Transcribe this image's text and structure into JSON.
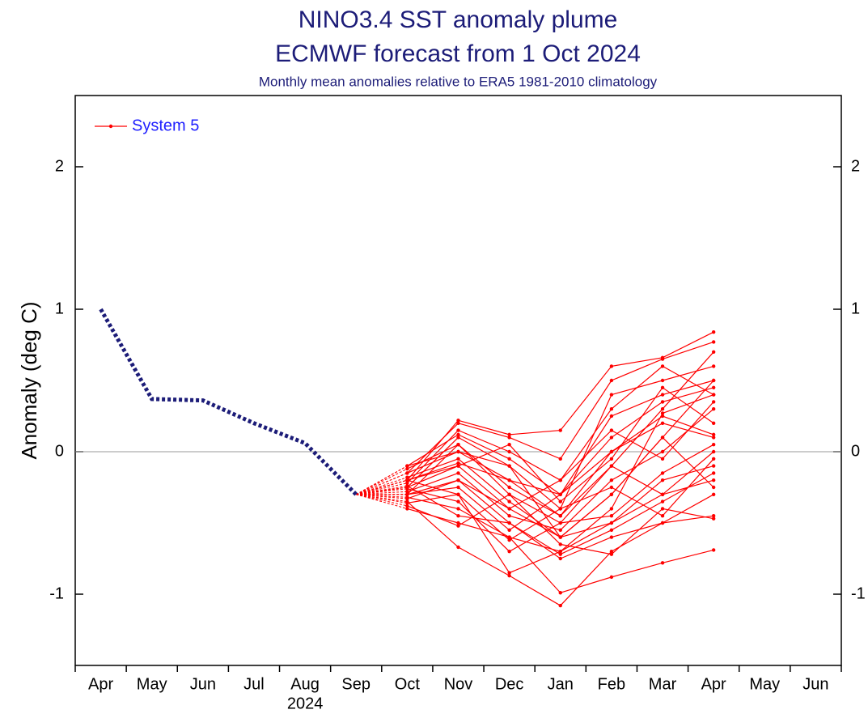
{
  "chart_data": {
    "type": "plume",
    "title": [
      "NINO3.4 SST anomaly plume",
      "ECMWF forecast from 1 Oct 2024"
    ],
    "subtitle": "Monthly mean anomalies relative to ERA5 1981-2010 climatology",
    "y_label": "Anomaly (deg C)",
    "year_label": "2024",
    "categories": [
      "Apr",
      "May",
      "Jun",
      "Jul",
      "Aug",
      "Sep",
      "Oct",
      "Nov",
      "Dec",
      "Jan",
      "Feb",
      "Mar",
      "Apr",
      "May",
      "Jun"
    ],
    "ylim": [
      -1.5,
      2.5
    ],
    "yticks": [
      -1,
      0,
      1,
      2
    ],
    "zero_line": true,
    "legend": "upper left",
    "observed": {
      "color": "#1c1c78",
      "values": [
        1.0,
        0.37,
        0.36,
        0.2,
        0.06,
        -0.3,
        null,
        null,
        null,
        null,
        null,
        null,
        null,
        null,
        null
      ]
    },
    "series": [
      {
        "name": "System 5",
        "color": "#ff0000",
        "members": [
          [
            null,
            null,
            null,
            null,
            null,
            -0.3,
            -0.2,
            0.22,
            0.12,
            0.15,
            0.6,
            0.66,
            0.84,
            null,
            null
          ],
          [
            null,
            null,
            null,
            null,
            null,
            -0.3,
            -0.15,
            0.2,
            0.1,
            -0.05,
            0.5,
            0.65,
            0.77,
            null,
            null
          ],
          [
            null,
            null,
            null,
            null,
            null,
            -0.3,
            -0.3,
            0.05,
            -0.3,
            -0.5,
            -0.1,
            0.3,
            0.7,
            null,
            null
          ],
          [
            null,
            null,
            null,
            null,
            null,
            -0.3,
            -0.25,
            -0.1,
            -0.4,
            -0.6,
            -0.3,
            0.1,
            0.5,
            null,
            null
          ],
          [
            null,
            null,
            null,
            null,
            null,
            -0.3,
            -0.35,
            -0.67,
            -0.87,
            -1.08,
            -0.7,
            -0.5,
            -0.3,
            null,
            null
          ],
          [
            null,
            null,
            null,
            null,
            null,
            -0.3,
            -0.4,
            -0.5,
            -0.6,
            -0.99,
            -0.88,
            -0.78,
            -0.69,
            null,
            null
          ],
          [
            null,
            null,
            null,
            null,
            null,
            -0.3,
            -0.2,
            -0.3,
            -0.85,
            -0.7,
            -0.4,
            0.27,
            0.4,
            null,
            null
          ],
          [
            null,
            null,
            null,
            null,
            null,
            -0.3,
            -0.1,
            0.0,
            -0.2,
            -0.3,
            0.0,
            0.2,
            0.1,
            null,
            null
          ],
          [
            null,
            null,
            null,
            null,
            null,
            -0.3,
            -0.3,
            -0.2,
            -0.5,
            -0.75,
            -0.6,
            -0.5,
            -0.45,
            null,
            null
          ],
          [
            null,
            null,
            null,
            null,
            null,
            -0.3,
            -0.25,
            0.1,
            -0.1,
            -0.4,
            0.4,
            0.5,
            0.6,
            null,
            null
          ],
          [
            null,
            null,
            null,
            null,
            null,
            -0.3,
            -0.18,
            -0.05,
            -0.35,
            -0.6,
            -0.5,
            -0.3,
            0.0,
            null,
            null
          ],
          [
            null,
            null,
            null,
            null,
            null,
            -0.3,
            -0.32,
            -0.4,
            -0.6,
            -0.7,
            -0.5,
            -0.2,
            -0.1,
            null,
            null
          ],
          [
            null,
            null,
            null,
            null,
            null,
            -0.3,
            -0.22,
            0.15,
            0.0,
            -0.2,
            0.3,
            0.6,
            0.4,
            null,
            null
          ],
          [
            null,
            null,
            null,
            null,
            null,
            -0.3,
            -0.28,
            -0.15,
            -0.45,
            -0.55,
            -0.2,
            0.0,
            0.3,
            null,
            null
          ],
          [
            null,
            null,
            null,
            null,
            null,
            -0.3,
            -0.12,
            0.05,
            -0.25,
            -0.45,
            -0.1,
            -0.3,
            -0.2,
            null,
            null
          ],
          [
            null,
            null,
            null,
            null,
            null,
            -0.3,
            -0.38,
            -0.52,
            -0.3,
            -0.65,
            -0.72,
            -0.4,
            -0.47,
            null,
            null
          ],
          [
            null,
            null,
            null,
            null,
            null,
            -0.3,
            -0.2,
            -0.1,
            0.05,
            -0.35,
            -0.05,
            0.45,
            0.2,
            null,
            null
          ],
          [
            null,
            null,
            null,
            null,
            null,
            -0.3,
            -0.3,
            -0.25,
            -0.55,
            -0.3,
            0.1,
            0.35,
            0.45,
            null,
            null
          ],
          [
            null,
            null,
            null,
            null,
            null,
            -0.3,
            -0.15,
            0.0,
            -0.1,
            -0.6,
            -0.3,
            0.1,
            -0.25,
            null,
            null
          ],
          [
            null,
            null,
            null,
            null,
            null,
            -0.3,
            -0.26,
            -0.35,
            -0.7,
            -0.5,
            -0.45,
            -0.15,
            0.05,
            null,
            null
          ],
          [
            null,
            null,
            null,
            null,
            null,
            -0.3,
            -0.33,
            -0.2,
            -0.4,
            -0.2,
            0.15,
            -0.05,
            0.35,
            null,
            null
          ],
          [
            null,
            null,
            null,
            null,
            null,
            -0.3,
            -0.1,
            0.12,
            -0.05,
            -0.3,
            0.25,
            0.4,
            0.5,
            null,
            null
          ],
          [
            null,
            null,
            null,
            null,
            null,
            -0.3,
            -0.24,
            -0.45,
            -0.5,
            -0.72,
            -0.55,
            -0.35,
            -0.15,
            null,
            null
          ],
          [
            null,
            null,
            null,
            null,
            null,
            -0.3,
            -0.2,
            -0.08,
            -0.2,
            -0.45,
            0.0,
            0.25,
            0.12,
            null,
            null
          ],
          [
            null,
            null,
            null,
            null,
            null,
            -0.3,
            -0.36,
            -0.3,
            -0.62,
            -0.4,
            -0.25,
            -0.45,
            -0.05,
            null,
            null
          ]
        ]
      }
    ]
  }
}
